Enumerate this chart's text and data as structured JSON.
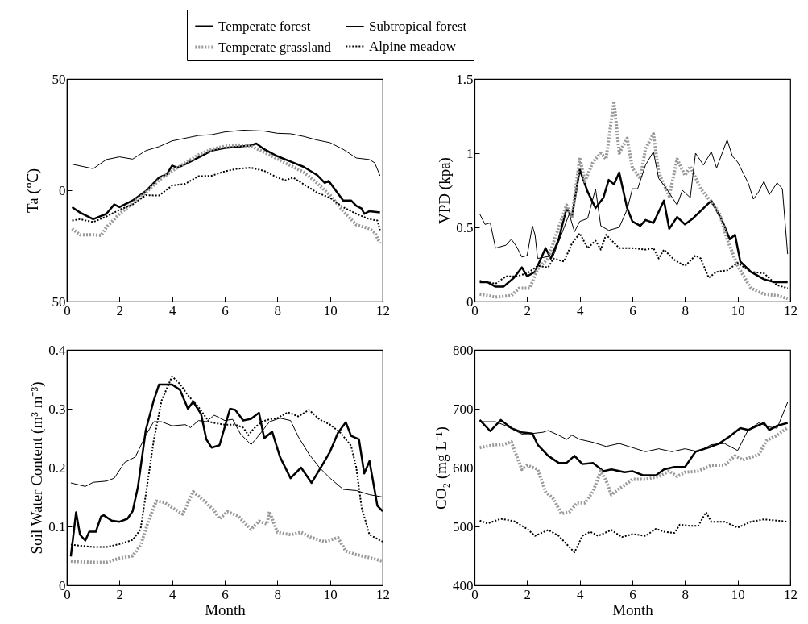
{
  "chart_data": [
    {
      "type": "line",
      "ylabel": "Ta (℃)",
      "xlim": [
        0,
        12
      ],
      "xticks": [
        0,
        2,
        4,
        6,
        8,
        10,
        12
      ],
      "ylim": [
        -50,
        50
      ],
      "yticks": [
        -50,
        0,
        50
      ],
      "legend": "top",
      "series": [
        {
          "name": "Temperate forest",
          "color": "#000000",
          "line_style": "solid",
          "x": [
            0.2,
            0.5,
            1,
            1.5,
            1.8,
            2,
            2.5,
            3,
            3.5,
            3.8,
            4,
            4.2,
            4.5,
            5,
            5.5,
            6,
            6.5,
            7,
            7.2,
            7.5,
            8,
            8.5,
            9,
            9.5,
            9.8,
            9.95,
            10.5,
            10.8,
            11,
            11.2,
            11.3,
            11.5,
            11.9
          ],
          "values": [
            -7.6,
            -10,
            -13,
            -10.6,
            -6.4,
            -7.6,
            -4.6,
            -0.4,
            5.7,
            7.2,
            11.1,
            10.1,
            11.7,
            14.7,
            17.8,
            19,
            19.6,
            20.2,
            21,
            18.4,
            15.3,
            12.9,
            10.5,
            6.9,
            3.3,
            4.2,
            -4.6,
            -4.6,
            -7,
            -8.2,
            -10.6,
            -9.4,
            -10
          ]
        },
        {
          "name": "Temperate grassland",
          "color": "#999999",
          "line_style": "dotted",
          "x": [
            0.2,
            0.5,
            1,
            1.3,
            1.5,
            2,
            2.5,
            3,
            3.5,
            4,
            4.5,
            5,
            5.5,
            6,
            6.5,
            7,
            7.5,
            8,
            8.5,
            9,
            9.5,
            10,
            10.5,
            11,
            11.5,
            11.7,
            11.9
          ],
          "values": [
            -17.3,
            -20,
            -20,
            -20.3,
            -16.7,
            -10.6,
            -5.8,
            -1,
            4.5,
            8.7,
            12.3,
            15.9,
            18.4,
            19.8,
            20.4,
            19.8,
            17.1,
            14.1,
            11.1,
            8.1,
            3.3,
            -2.2,
            -9.4,
            -15.5,
            -17.3,
            -19,
            -23.9
          ]
        },
        {
          "name": "Subtropical forest",
          "color": "#000000",
          "line_style": "solid",
          "x": [
            0.2,
            1,
            1.5,
            2,
            2.5,
            3,
            3.5,
            4,
            4.5,
            5,
            5.5,
            6,
            6.7,
            7.5,
            8,
            8.5,
            9,
            9.5,
            10,
            10.5,
            11,
            11.5,
            11.7,
            11.9
          ],
          "values": [
            11.7,
            9.7,
            13.8,
            15,
            14,
            17.8,
            19.6,
            22.2,
            23.4,
            24.6,
            25,
            26.2,
            27,
            26.6,
            25.6,
            25.4,
            24.2,
            22.6,
            21.4,
            18.4,
            14.5,
            13.8,
            12.3,
            6.5
          ]
        },
        {
          "name": "Alpine meadow",
          "color": "#000000",
          "line_style": "dotted",
          "x": [
            0.2,
            0.5,
            1,
            1.5,
            2,
            2.5,
            3,
            3.5,
            4,
            4.5,
            5,
            5.5,
            6,
            6.5,
            7,
            7.5,
            8,
            8.3,
            8.6,
            9,
            9.5,
            10,
            10.5,
            11,
            11.5,
            11.8,
            11.9
          ],
          "values": [
            -13.6,
            -13,
            -14.3,
            -11.8,
            -8.8,
            -6.4,
            -2.2,
            -2.4,
            2.1,
            2.9,
            6.3,
            6.5,
            8.5,
            9.7,
            10.1,
            8.7,
            5.7,
            4.5,
            5.7,
            2.7,
            -1,
            -3.4,
            -7.6,
            -10.6,
            -13,
            -13.6,
            -17.9
          ]
        }
      ]
    },
    {
      "type": "line",
      "ylabel": "VPD (kpa)",
      "xlim": [
        0,
        12
      ],
      "xticks": [
        0,
        2,
        4,
        6,
        8,
        10,
        12
      ],
      "ylim": [
        0,
        1.5
      ],
      "yticks": [
        0,
        0.5,
        1,
        1.5
      ],
      "series": [
        {
          "color": "#000000",
          "line_style": "solid",
          "x": [
            0.2,
            0.5,
            0.8,
            1.1,
            1.5,
            1.8,
            2,
            2.3,
            2.7,
            2.9,
            3.2,
            3.5,
            3.7,
            4,
            4.3,
            4.6,
            4.9,
            5.1,
            5.3,
            5.5,
            5.8,
            6,
            6.3,
            6.5,
            6.8,
            7.2,
            7.4,
            7.7,
            8,
            8.3,
            9,
            9.4,
            9.7,
            9.9,
            10.1,
            10.5,
            11,
            11.4,
            11.9
          ],
          "values": [
            0.13,
            0.13,
            0.1,
            0.1,
            0.16,
            0.23,
            0.17,
            0.2,
            0.36,
            0.29,
            0.42,
            0.63,
            0.57,
            0.89,
            0.74,
            0.63,
            0.7,
            0.82,
            0.79,
            0.87,
            0.63,
            0.54,
            0.51,
            0.55,
            0.53,
            0.68,
            0.49,
            0.57,
            0.52,
            0.56,
            0.68,
            0.55,
            0.42,
            0.45,
            0.27,
            0.2,
            0.15,
            0.13,
            0.13
          ]
        },
        {
          "color": "#999999",
          "line_style": "dotted",
          "x": [
            0.2,
            0.8,
            1.4,
            1.7,
            2.1,
            2.4,
            2.8,
            3.1,
            3.5,
            3.7,
            4,
            4.2,
            4.5,
            4.8,
            5,
            5.3,
            5.5,
            5.8,
            6,
            6.3,
            6.5,
            6.8,
            7,
            7.4,
            7.7,
            8,
            8.2,
            8.6,
            9,
            9.3,
            9.6,
            10,
            10.5,
            11,
            11.5,
            11.9
          ],
          "values": [
            0.05,
            0.03,
            0.04,
            0.09,
            0.09,
            0.22,
            0.29,
            0.45,
            0.65,
            0.56,
            0.97,
            0.81,
            0.94,
            1,
            0.96,
            1.35,
            1,
            1.1,
            0.9,
            0.83,
            1.03,
            1.13,
            0.87,
            0.71,
            0.96,
            0.85,
            0.91,
            0.76,
            0.67,
            0.6,
            0.42,
            0.24,
            0.09,
            0.05,
            0.04,
            0.02
          ]
        },
        {
          "color": "#000000",
          "line_style": "solid",
          "x": [
            0.2,
            0.4,
            0.6,
            0.8,
            1.2,
            1.4,
            1.6,
            1.8,
            2,
            2.2,
            2.3,
            2.4,
            3,
            3.3,
            3.6,
            3.8,
            4,
            4.3,
            4.6,
            4.8,
            5.1,
            5.5,
            5.8,
            6,
            6.2,
            6.5,
            6.8,
            7,
            7.3,
            7.7,
            7.9,
            8.2,
            8.4,
            8.7,
            9,
            9.2,
            9.6,
            9.8,
            10,
            10.4,
            10.6,
            10.8,
            11,
            11.2,
            11.5,
            11.7,
            11.9
          ],
          "values": [
            0.59,
            0.52,
            0.53,
            0.36,
            0.38,
            0.42,
            0.37,
            0.3,
            0.31,
            0.51,
            0.45,
            0.29,
            0.31,
            0.45,
            0.59,
            0.47,
            0.54,
            0.56,
            0.76,
            0.51,
            0.48,
            0.5,
            0.62,
            0.76,
            0.76,
            0.92,
            1.01,
            0.83,
            0.76,
            0.65,
            0.75,
            0.7,
            1,
            0.92,
            1.01,
            0.9,
            1.09,
            0.98,
            0.94,
            0.8,
            0.69,
            0.74,
            0.81,
            0.72,
            0.8,
            0.76,
            0.32
          ]
        },
        {
          "color": "#000000",
          "line_style": "dotted",
          "x": [
            0.2,
            0.5,
            0.8,
            1.2,
            1.6,
            2,
            2.4,
            2.8,
            3,
            3.4,
            3.7,
            4,
            4.3,
            4.6,
            4.8,
            5,
            5.5,
            6,
            6.5,
            6.8,
            7,
            7.2,
            7.6,
            8,
            8.4,
            8.6,
            8.9,
            9.2,
            9.6,
            10,
            10.5,
            11,
            11.5,
            11.9
          ],
          "values": [
            0.14,
            0.13,
            0.12,
            0.17,
            0.17,
            0.19,
            0.24,
            0.23,
            0.29,
            0.27,
            0.39,
            0.46,
            0.36,
            0.41,
            0.35,
            0.45,
            0.36,
            0.36,
            0.35,
            0.36,
            0.29,
            0.35,
            0.28,
            0.24,
            0.31,
            0.29,
            0.16,
            0.2,
            0.21,
            0.26,
            0.2,
            0.19,
            0.11,
            0.09
          ]
        }
      ]
    },
    {
      "type": "line",
      "xlabel": "Month",
      "ylabel": "Soil Water Content (m³ m⁻³)",
      "xlim": [
        0,
        12
      ],
      "xticks": [
        0,
        2,
        4,
        6,
        8,
        10,
        12
      ],
      "ylim": [
        0,
        0.4
      ],
      "yticks": [
        0,
        0.1,
        0.2,
        0.3,
        0.4
      ],
      "series": [
        {
          "color": "#000000",
          "line_style": "solid",
          "x": [
            0.15,
            0.35,
            0.5,
            0.7,
            0.85,
            1.1,
            1.3,
            1.4,
            1.7,
            2,
            2.3,
            2.5,
            2.7,
            3,
            3.3,
            3.5,
            4,
            4.3,
            4.6,
            4.8,
            5.1,
            5.3,
            5.5,
            5.8,
            6.2,
            6.4,
            6.7,
            7,
            7.3,
            7.5,
            7.8,
            8.1,
            8.5,
            8.9,
            9.3,
            9.7,
            10,
            10.3,
            10.6,
            10.8,
            11.1,
            11.3,
            11.5,
            11.8,
            12
          ],
          "values": [
            0.049,
            0.124,
            0.086,
            0.076,
            0.091,
            0.091,
            0.117,
            0.119,
            0.11,
            0.108,
            0.113,
            0.126,
            0.167,
            0.264,
            0.314,
            0.341,
            0.341,
            0.332,
            0.3,
            0.312,
            0.291,
            0.248,
            0.234,
            0.238,
            0.3,
            0.298,
            0.28,
            0.283,
            0.293,
            0.25,
            0.261,
            0.218,
            0.182,
            0.2,
            0.174,
            0.204,
            0.227,
            0.259,
            0.277,
            0.254,
            0.248,
            0.19,
            0.211,
            0.135,
            0.126
          ]
        },
        {
          "color": "#999999",
          "line_style": "dotted",
          "x": [
            0.15,
            1,
            1.5,
            2,
            2.5,
            2.8,
            3.1,
            3.4,
            3.7,
            4,
            4.4,
            4.8,
            5.2,
            5.6,
            5.8,
            6.1,
            6.5,
            7,
            7.3,
            7.6,
            7.7,
            8,
            8.5,
            8.9,
            9.3,
            9.8,
            10.3,
            10.6,
            11,
            11.5,
            12
          ],
          "values": [
            0.041,
            0.039,
            0.039,
            0.046,
            0.05,
            0.068,
            0.109,
            0.143,
            0.141,
            0.132,
            0.121,
            0.159,
            0.144,
            0.127,
            0.113,
            0.125,
            0.118,
            0.095,
            0.109,
            0.104,
            0.125,
            0.09,
            0.086,
            0.09,
            0.081,
            0.074,
            0.081,
            0.058,
            0.052,
            0.047,
            0.041
          ]
        },
        {
          "color": "#000000",
          "line_style": "solid",
          "x": [
            0.15,
            0.7,
            1,
            1.5,
            1.8,
            2.2,
            2.6,
            3,
            3.3,
            3.6,
            4,
            4.5,
            4.7,
            5,
            5.3,
            5.6,
            6,
            6.3,
            6.6,
            7,
            7.3,
            7.7,
            8.1,
            8.5,
            8.8,
            9.2,
            9.6,
            10,
            10.5,
            11,
            11.5,
            12
          ],
          "values": [
            0.174,
            0.168,
            0.175,
            0.177,
            0.182,
            0.209,
            0.218,
            0.255,
            0.278,
            0.278,
            0.271,
            0.273,
            0.268,
            0.28,
            0.278,
            0.289,
            0.28,
            0.282,
            0.257,
            0.239,
            0.255,
            0.278,
            0.284,
            0.28,
            0.252,
            0.223,
            0.2,
            0.182,
            0.163,
            0.161,
            0.154,
            0.15
          ]
        },
        {
          "color": "#000000",
          "line_style": "dotted",
          "x": [
            0.15,
            1,
            1.5,
            2,
            2.5,
            2.8,
            3,
            3.3,
            3.6,
            4,
            4.3,
            4.6,
            5,
            5.4,
            5.7,
            6,
            6.4,
            6.7,
            6.9,
            7.1,
            7.4,
            7.7,
            8,
            8.4,
            8.8,
            9.2,
            9.6,
            10,
            10.4,
            10.8,
            11,
            11.2,
            11.5,
            12
          ],
          "values": [
            0.069,
            0.065,
            0.065,
            0.07,
            0.077,
            0.095,
            0.154,
            0.246,
            0.314,
            0.355,
            0.342,
            0.323,
            0.303,
            0.278,
            0.275,
            0.273,
            0.273,
            0.268,
            0.255,
            0.266,
            0.278,
            0.282,
            0.284,
            0.294,
            0.287,
            0.298,
            0.282,
            0.273,
            0.259,
            0.237,
            0.2,
            0.132,
            0.086,
            0.074
          ]
        }
      ]
    },
    {
      "type": "line",
      "xlabel": "Month",
      "ylabel": "CO₂ (mg L⁻¹)",
      "xlim": [
        0,
        12
      ],
      "xticks": [
        0,
        2,
        4,
        6,
        8,
        10,
        12
      ],
      "ylim": [
        400,
        800
      ],
      "yticks": [
        400,
        500,
        600,
        700,
        800
      ],
      "series": [
        {
          "color": "#000000",
          "line_style": "solid",
          "x": [
            0.2,
            0.6,
            1,
            1.4,
            1.8,
            2.2,
            2.4,
            2.8,
            3.2,
            3.5,
            3.8,
            4.1,
            4.5,
            4.9,
            5.2,
            5.7,
            6,
            6.4,
            6.9,
            7.2,
            7.6,
            8,
            8.4,
            8.9,
            9.3,
            9.7,
            10.1,
            10.4,
            10.8,
            11,
            11.2,
            11.5,
            11.9
          ],
          "values": [
            681,
            662,
            681,
            667,
            660,
            658,
            639,
            620,
            608,
            608,
            620,
            606,
            608,
            594,
            597,
            592,
            594,
            587,
            587,
            597,
            601,
            601,
            627,
            634,
            641,
            653,
            667,
            664,
            672,
            676,
            664,
            671,
            676
          ]
        },
        {
          "color": "#999999",
          "line_style": "dotted",
          "x": [
            0.2,
            0.8,
            1.1,
            1.4,
            1.6,
            1.8,
            2,
            2.4,
            2.7,
            3,
            3.3,
            3.6,
            3.9,
            4.2,
            4.5,
            4.8,
            5,
            5.2,
            5.5,
            5.8,
            6,
            6.5,
            7,
            7.4,
            7.7,
            8,
            8.5,
            9,
            9.5,
            9.9,
            10.2,
            10.8,
            11.1,
            11.5,
            11.9
          ],
          "values": [
            634,
            639,
            639,
            644,
            620,
            597,
            604,
            597,
            559,
            547,
            522,
            524,
            540,
            540,
            559,
            594,
            578,
            554,
            564,
            573,
            580,
            580,
            585,
            594,
            585,
            592,
            594,
            604,
            604,
            620,
            613,
            622,
            646,
            655,
            668
          ]
        },
        {
          "color": "#000000",
          "line_style": "solid",
          "x": [
            0.2,
            0.8,
            1.2,
            1.8,
            2.2,
            2.6,
            2.8,
            3.2,
            3.5,
            3.7,
            4,
            4.5,
            5,
            5.5,
            6,
            6.5,
            7,
            7.5,
            8,
            8.5,
            9,
            9.5,
            10,
            10.4,
            10.8,
            11.2,
            11.5,
            11.9
          ],
          "values": [
            678,
            678,
            671,
            657,
            658,
            660,
            663,
            655,
            648,
            655,
            648,
            643,
            636,
            641,
            634,
            627,
            632,
            627,
            632,
            627,
            639,
            641,
            629,
            664,
            676,
            669,
            667,
            711
          ]
        },
        {
          "color": "#000000",
          "line_style": "dotted",
          "x": [
            0.2,
            0.5,
            1,
            1.5,
            2,
            2.3,
            2.8,
            3.2,
            3.5,
            3.8,
            4.1,
            4.4,
            4.7,
            5.2,
            5.6,
            6,
            6.5,
            6.9,
            7.2,
            7.6,
            7.8,
            8.2,
            8.5,
            8.8,
            9,
            9.5,
            10,
            10.5,
            11,
            11.5,
            11.9
          ],
          "values": [
            510,
            505,
            513,
            509,
            496,
            484,
            494,
            484,
            470,
            456,
            484,
            491,
            484,
            494,
            482,
            487,
            484,
            496,
            491,
            489,
            503,
            501,
            501,
            524,
            508,
            508,
            498,
            508,
            512,
            510,
            508
          ]
        }
      ]
    }
  ]
}
